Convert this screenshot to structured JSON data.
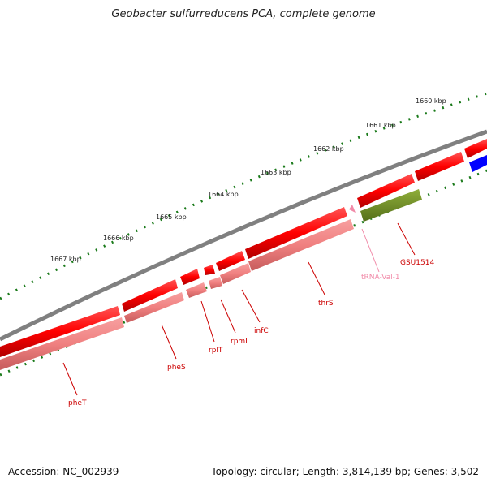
{
  "title": "Geobacter sulfurreducens PCA, complete genome",
  "footer": {
    "accession": "Accession: NC_002939",
    "summary": "Topology: circular; Length: 3,814,139 bp; Genes: 3,502"
  },
  "ruler": [
    "1660 kbp",
    "1661 kbp",
    "1662 kbp",
    "1663 kbp",
    "1664 kbp",
    "1665 kbp",
    "1666 kbp",
    "1667 kbp"
  ],
  "gene_labels": {
    "pheT": "pheT",
    "pheS": "pheS",
    "rplT": "rplT",
    "rpmI": "rpmI",
    "infC": "infC",
    "thrS": "thrS",
    "trna": "tRNA-Val-1",
    "gsu1514": "GSU1514"
  },
  "colors": {
    "cds": "#ff0000",
    "cds_light": "#f08080",
    "cds_other": "#0000ff",
    "gene": "#6b8e23",
    "trna": "#f18aa8",
    "backbone": "#808080",
    "ticks": "#1a7a1a"
  }
}
